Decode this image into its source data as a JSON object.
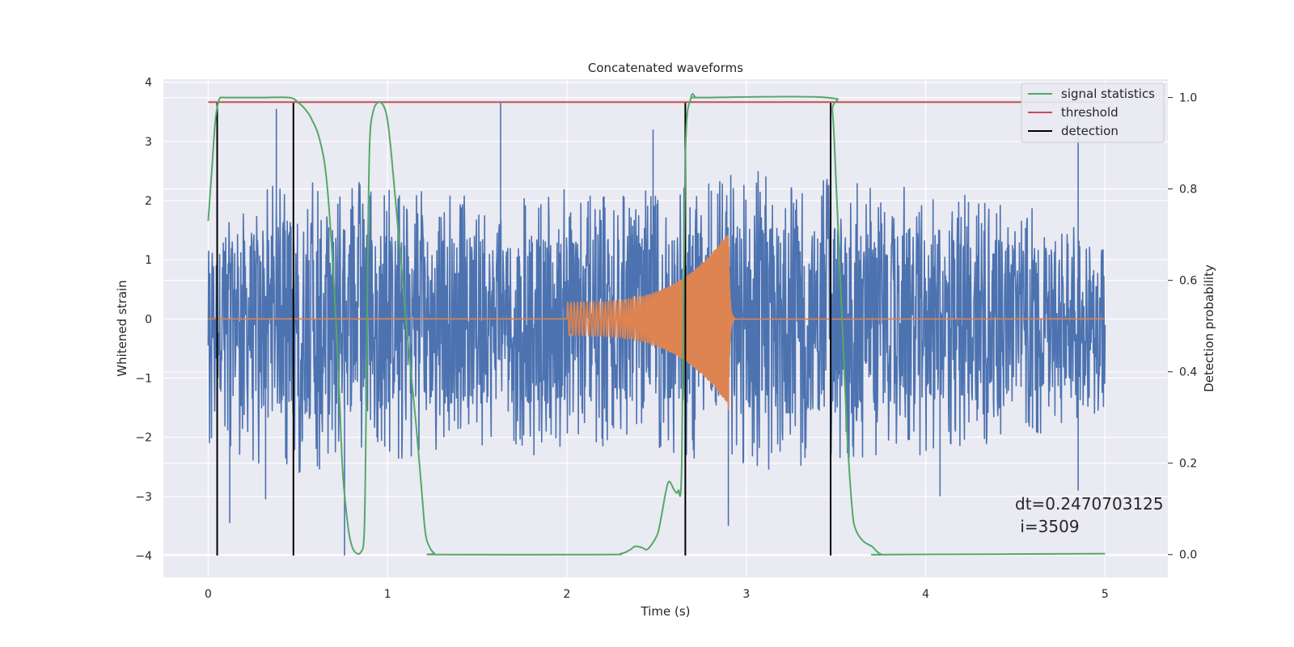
{
  "chart_data": {
    "type": "line",
    "title": "Concatenated waveforms",
    "xlabel": "Time (s)",
    "ylabel_left": "Whitened strain",
    "ylabel_right": "Detection probability",
    "xlim": [
      -0.25,
      5.35
    ],
    "ylim_left": [
      -4.37,
      4.05
    ],
    "ylim_right": [
      -0.05,
      1.04
    ],
    "x_ticks": [
      0,
      1,
      2,
      3,
      4,
      5
    ],
    "y_left_ticks": [
      -4,
      -3,
      -2,
      -1,
      0,
      1,
      2,
      3,
      4
    ],
    "y_right_ticks": [
      0.0,
      0.2,
      0.4,
      0.6,
      0.8,
      1.0
    ],
    "x_tick_labels": [
      "0",
      "1",
      "2",
      "3",
      "4",
      "5"
    ],
    "y_left_tick_labels": [
      "−4",
      "−3",
      "−2",
      "−1",
      "0",
      "1",
      "2",
      "3",
      "4"
    ],
    "y_right_tick_labels": [
      "0.0",
      "0.2",
      "0.4",
      "0.6",
      "0.8",
      "1.0"
    ],
    "grid": true,
    "legend_position": "top-right",
    "colors": {
      "noise": "#4c72b0",
      "waveform": "#dd8452",
      "signal_statistics": "#55a868",
      "threshold": "#c44e52",
      "detection": "#000000",
      "axes_bg": "#eaeaf2"
    },
    "series": [
      {
        "name": "signal statistics",
        "axis": "right",
        "x": [
          0,
          0.02,
          0.04,
          0.06,
          0.08,
          0.1,
          0.3,
          0.45,
          0.5,
          0.55,
          0.58,
          0.62,
          0.66,
          0.7,
          0.73,
          0.75,
          0.78,
          0.8,
          0.82,
          0.85,
          0.87,
          0.88,
          0.89,
          0.9,
          0.92,
          0.95,
          0.98,
          1.0,
          1.02,
          1.05,
          1.08,
          1.1,
          1.13,
          1.16,
          1.19,
          1.21,
          1.23,
          1.26,
          1.3,
          2.2,
          2.3,
          2.35,
          2.38,
          2.42,
          2.45,
          2.5,
          2.52,
          2.55,
          2.57,
          2.6,
          2.62,
          2.64,
          2.66,
          2.69,
          2.72,
          2.76,
          3.45,
          3.48,
          3.5,
          3.53,
          3.56,
          3.59,
          3.61,
          3.65,
          3.7,
          3.72,
          3.74,
          3.76,
          3.8,
          5.0
        ],
        "y": [
          0.73,
          0.84,
          0.95,
          0.995,
          1.0,
          1.0,
          1.0,
          1.0,
          0.99,
          0.97,
          0.95,
          0.91,
          0.82,
          0.6,
          0.36,
          0.18,
          0.06,
          0.02,
          0.005,
          0.005,
          0.05,
          0.3,
          0.65,
          0.9,
          0.97,
          0.99,
          0.98,
          0.95,
          0.88,
          0.75,
          0.62,
          0.52,
          0.4,
          0.28,
          0.14,
          0.05,
          0.02,
          0.003,
          0.0,
          0.0,
          0.002,
          0.01,
          0.018,
          0.015,
          0.012,
          0.04,
          0.07,
          0.135,
          0.16,
          0.14,
          0.14,
          0.2,
          0.87,
          0.998,
          1.0,
          1.0,
          1.0,
          0.97,
          0.82,
          0.55,
          0.28,
          0.1,
          0.055,
          0.03,
          0.018,
          0.01,
          0.003,
          0.0,
          0.0,
          0.002
        ]
      },
      {
        "name": "threshold",
        "axis": "right",
        "x": [
          0,
          5
        ],
        "y": [
          0.99,
          0.99
        ]
      },
      {
        "name": "detection",
        "axis": "left",
        "detection_times": [
          0.05,
          0.475,
          2.66,
          3.47
        ],
        "y_range": [
          -4.0,
          3.65
        ]
      }
    ],
    "noise_envelope": {
      "x": [
        0,
        0.5,
        1.0,
        1.5,
        2.0,
        2.5,
        3.0,
        3.5,
        4.0,
        4.5,
        5.0
      ],
      "y_max": [
        1.4,
        2.6,
        2.3,
        2.1,
        2.2,
        2.2,
        2.6,
        2.4,
        2.2,
        2.0,
        1.4
      ],
      "y_min": [
        -2.2,
        -2.8,
        -2.4,
        -2.3,
        -2.3,
        -2.2,
        -2.6,
        -2.4,
        -2.3,
        -2.1,
        -1.6
      ],
      "spikes": [
        [
          0.38,
          3.55
        ],
        [
          0.12,
          -3.45
        ],
        [
          0.76,
          -4.0
        ],
        [
          1.63,
          3.65
        ],
        [
          2.9,
          -3.5
        ],
        [
          2.48,
          3.2
        ],
        [
          4.85,
          3.45
        ],
        [
          4.85,
          -2.9
        ],
        [
          0.32,
          -3.05
        ],
        [
          4.08,
          -3.0
        ]
      ]
    },
    "chirp": {
      "t_start": 2.0,
      "t_end": 2.9,
      "amp_start": 0.28,
      "amp_end": 1.45,
      "ringdown_end": 2.94
    },
    "annotation": "dt=0.2470703125\n i=3509"
  }
}
